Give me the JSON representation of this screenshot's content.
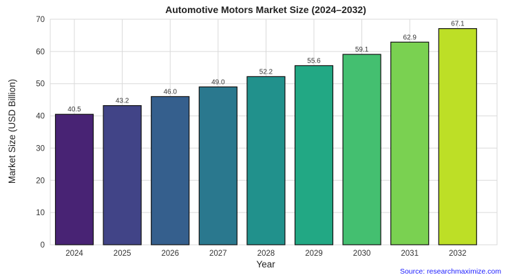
{
  "chart_data": {
    "type": "bar",
    "title": "Automotive Motors Market Size (2024–2032)",
    "xlabel": "Year",
    "ylabel": "Market Size (USD Billion)",
    "categories": [
      "2024",
      "2025",
      "2026",
      "2027",
      "2028",
      "2029",
      "2030",
      "2031",
      "2032"
    ],
    "values": [
      40.5,
      43.2,
      46.0,
      49.0,
      52.2,
      55.6,
      59.1,
      62.9,
      67.1
    ],
    "value_labels": [
      "40.5",
      "43.2",
      "46.0",
      "49.0",
      "52.2",
      "55.6",
      "59.1",
      "62.9",
      "67.1"
    ],
    "ylim": [
      0,
      70
    ],
    "yticks": [
      "0",
      "10",
      "20",
      "30",
      "40",
      "50",
      "60",
      "70"
    ],
    "grid": true,
    "bar_colors": [
      "#482374",
      "#414487",
      "#355f8d",
      "#2a788e",
      "#21918c",
      "#22a884",
      "#44bf70",
      "#7ad151",
      "#bddf26"
    ],
    "bar_edge_color": "#111111",
    "grid_color": "#d9d9d9"
  },
  "source": "Source: researchmaximize.com"
}
